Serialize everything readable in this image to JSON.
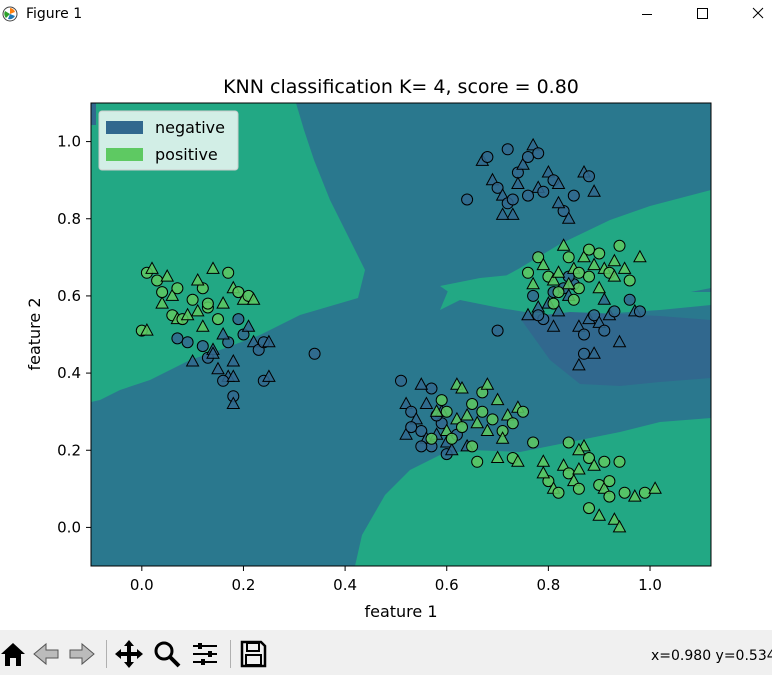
{
  "window": {
    "title": "Figure 1",
    "icon": "matplotlib-logo-icon",
    "controls": [
      "minimize-icon",
      "maximize-icon",
      "close-icon"
    ]
  },
  "chart_data": {
    "type": "scatter",
    "title": "KNN classification K= 4, score = 0.80",
    "xlabel": "feature 1",
    "ylabel": "feature 2",
    "xlim": [
      -0.1,
      1.12
    ],
    "ylim": [
      -0.1,
      1.1
    ],
    "xticks": [
      "0.0",
      "0.2",
      "0.4",
      "0.6",
      "0.8",
      "1.0"
    ],
    "yticks": [
      "0.0",
      "0.2",
      "0.4",
      "0.6",
      "0.8",
      "1.0"
    ],
    "legend_position": "top-left",
    "legend": [
      {
        "label": "negative",
        "color": "#31688e"
      },
      {
        "label": "positive",
        "color": "#5ec962"
      }
    ],
    "background_colors": {
      "negative_region": "#2a788e",
      "positive_region": "#22a884",
      "dark_region": "#31688e"
    },
    "series": [
      {
        "name": "negative",
        "color": "#31688e",
        "points": [
          [
            0.07,
            0.49
          ],
          [
            0.1,
            0.43
          ],
          [
            0.13,
            0.44
          ],
          [
            0.15,
            0.41
          ],
          [
            0.12,
            0.47
          ],
          [
            0.14,
            0.46
          ],
          [
            0.17,
            0.48
          ],
          [
            0.18,
            0.43
          ],
          [
            0.2,
            0.5
          ],
          [
            0.21,
            0.52
          ],
          [
            0.19,
            0.54
          ],
          [
            0.22,
            0.48
          ],
          [
            0.23,
            0.46
          ],
          [
            0.17,
            0.39
          ],
          [
            0.18,
            0.34
          ],
          [
            0.18,
            0.32
          ],
          [
            0.24,
            0.48
          ],
          [
            0.25,
            0.48
          ],
          [
            0.24,
            0.38
          ],
          [
            0.25,
            0.39
          ],
          [
            0.16,
            0.38
          ],
          [
            0.14,
            0.45
          ],
          [
            0.09,
            0.48
          ],
          [
            0.16,
            0.5
          ],
          [
            0.34,
            0.45
          ],
          [
            0.18,
            0.39
          ],
          [
            0.51,
            0.38
          ],
          [
            0.52,
            0.32
          ],
          [
            0.53,
            0.3
          ],
          [
            0.54,
            0.28
          ],
          [
            0.55,
            0.25
          ],
          [
            0.56,
            0.23
          ],
          [
            0.57,
            0.21
          ],
          [
            0.58,
            0.24
          ],
          [
            0.59,
            0.27
          ],
          [
            0.6,
            0.22
          ],
          [
            0.58,
            0.29
          ],
          [
            0.56,
            0.32
          ],
          [
            0.57,
            0.36
          ],
          [
            0.55,
            0.37
          ],
          [
            0.62,
            0.24
          ],
          [
            0.64,
            0.21
          ],
          [
            0.6,
            0.19
          ],
          [
            0.52,
            0.24
          ],
          [
            0.53,
            0.26
          ],
          [
            0.59,
            0.3
          ],
          [
            0.55,
            0.21
          ],
          [
            0.61,
            0.2
          ],
          [
            0.64,
            0.85
          ],
          [
            0.67,
            0.95
          ],
          [
            0.68,
            0.96
          ],
          [
            0.69,
            0.9
          ],
          [
            0.7,
            0.88
          ],
          [
            0.71,
            0.86
          ],
          [
            0.72,
            0.84
          ],
          [
            0.73,
            0.81
          ],
          [
            0.74,
            0.92
          ],
          [
            0.75,
            0.94
          ],
          [
            0.76,
            0.96
          ],
          [
            0.77,
            0.99
          ],
          [
            0.78,
            0.97
          ],
          [
            0.78,
            0.88
          ],
          [
            0.79,
            0.87
          ],
          [
            0.8,
            0.92
          ],
          [
            0.81,
            0.9
          ],
          [
            0.82,
            0.89
          ],
          [
            0.83,
            0.82
          ],
          [
            0.84,
            0.8
          ],
          [
            0.85,
            0.86
          ],
          [
            0.87,
            0.92
          ],
          [
            0.88,
            0.91
          ],
          [
            0.89,
            0.87
          ],
          [
            0.72,
            0.98
          ],
          [
            0.74,
            0.89
          ],
          [
            0.76,
            0.86
          ],
          [
            0.71,
            0.81
          ],
          [
            0.73,
            0.85
          ],
          [
            0.82,
            0.84
          ],
          [
            0.7,
            0.51
          ],
          [
            0.76,
            0.55
          ],
          [
            0.77,
            0.6
          ],
          [
            0.78,
            0.57
          ],
          [
            0.79,
            0.54
          ],
          [
            0.8,
            0.58
          ],
          [
            0.81,
            0.61
          ],
          [
            0.82,
            0.56
          ],
          [
            0.83,
            0.62
          ],
          [
            0.84,
            0.6
          ],
          [
            0.85,
            0.63
          ],
          [
            0.86,
            0.52
          ],
          [
            0.87,
            0.5
          ],
          [
            0.88,
            0.54
          ],
          [
            0.89,
            0.55
          ],
          [
            0.9,
            0.53
          ],
          [
            0.91,
            0.51
          ],
          [
            0.92,
            0.55
          ],
          [
            0.93,
            0.56
          ],
          [
            0.94,
            0.48
          ],
          [
            0.96,
            0.59
          ],
          [
            0.97,
            0.56
          ],
          [
            0.98,
            0.56
          ],
          [
            0.89,
            0.45
          ],
          [
            0.87,
            0.45
          ],
          [
            0.86,
            0.42
          ],
          [
            0.78,
            0.55
          ],
          [
            0.81,
            0.52
          ],
          [
            0.84,
            0.65
          ],
          [
            0.91,
            0.59
          ]
        ]
      },
      {
        "name": "positive",
        "color": "#5ec962",
        "points": [
          [
            0.0,
            0.51
          ],
          [
            0.01,
            0.51
          ],
          [
            0.01,
            0.66
          ],
          [
            0.02,
            0.67
          ],
          [
            0.03,
            0.64
          ],
          [
            0.04,
            0.58
          ],
          [
            0.04,
            0.61
          ],
          [
            0.05,
            0.65
          ],
          [
            0.06,
            0.55
          ],
          [
            0.06,
            0.6
          ],
          [
            0.07,
            0.62
          ],
          [
            0.07,
            0.54
          ],
          [
            0.08,
            0.54
          ],
          [
            0.09,
            0.55
          ],
          [
            0.1,
            0.59
          ],
          [
            0.11,
            0.56
          ],
          [
            0.12,
            0.62
          ],
          [
            0.12,
            0.52
          ],
          [
            0.13,
            0.57
          ],
          [
            0.14,
            0.67
          ],
          [
            0.15,
            0.54
          ],
          [
            0.16,
            0.58
          ],
          [
            0.17,
            0.66
          ],
          [
            0.18,
            0.62
          ],
          [
            0.19,
            0.61
          ],
          [
            0.2,
            0.59
          ],
          [
            0.21,
            0.6
          ],
          [
            0.22,
            0.59
          ],
          [
            0.13,
            0.58
          ],
          [
            0.11,
            0.64
          ],
          [
            0.57,
            0.23
          ],
          [
            0.58,
            0.3
          ],
          [
            0.59,
            0.33
          ],
          [
            0.6,
            0.25
          ],
          [
            0.61,
            0.23
          ],
          [
            0.62,
            0.28
          ],
          [
            0.63,
            0.26
          ],
          [
            0.64,
            0.29
          ],
          [
            0.65,
            0.32
          ],
          [
            0.66,
            0.27
          ],
          [
            0.67,
            0.3
          ],
          [
            0.68,
            0.25
          ],
          [
            0.69,
            0.28
          ],
          [
            0.7,
            0.33
          ],
          [
            0.71,
            0.25
          ],
          [
            0.72,
            0.29
          ],
          [
            0.73,
            0.27
          ],
          [
            0.74,
            0.31
          ],
          [
            0.75,
            0.3
          ],
          [
            0.62,
            0.37
          ],
          [
            0.67,
            0.35
          ],
          [
            0.68,
            0.37
          ],
          [
            0.66,
            0.17
          ],
          [
            0.7,
            0.18
          ],
          [
            0.73,
            0.18
          ],
          [
            0.74,
            0.17
          ],
          [
            0.65,
            0.21
          ],
          [
            0.71,
            0.23
          ],
          [
            0.6,
            0.3
          ],
          [
            0.63,
            0.36
          ],
          [
            0.77,
            0.22
          ],
          [
            0.79,
            0.17
          ],
          [
            0.8,
            0.12
          ],
          [
            0.81,
            0.1
          ],
          [
            0.82,
            0.09
          ],
          [
            0.83,
            0.16
          ],
          [
            0.84,
            0.14
          ],
          [
            0.85,
            0.12
          ],
          [
            0.86,
            0.1
          ],
          [
            0.87,
            0.21
          ],
          [
            0.88,
            0.18
          ],
          [
            0.89,
            0.16
          ],
          [
            0.9,
            0.11
          ],
          [
            0.91,
            0.1
          ],
          [
            0.92,
            0.08
          ],
          [
            0.93,
            0.02
          ],
          [
            0.94,
            0.17
          ],
          [
            0.94,
            0.0
          ],
          [
            0.95,
            0.09
          ],
          [
            0.97,
            0.08
          ],
          [
            0.99,
            0.09
          ],
          [
            1.01,
            0.1
          ],
          [
            0.91,
            0.17
          ],
          [
            0.86,
            0.2
          ],
          [
            0.84,
            0.22
          ],
          [
            0.79,
            0.14
          ],
          [
            0.88,
            0.05
          ],
          [
            0.9,
            0.03
          ],
          [
            0.92,
            0.12
          ],
          [
            0.86,
            0.15
          ],
          [
            0.76,
            0.66
          ],
          [
            0.77,
            0.63
          ],
          [
            0.78,
            0.7
          ],
          [
            0.79,
            0.68
          ],
          [
            0.8,
            0.65
          ],
          [
            0.81,
            0.64
          ],
          [
            0.82,
            0.61
          ],
          [
            0.83,
            0.73
          ],
          [
            0.84,
            0.7
          ],
          [
            0.85,
            0.67
          ],
          [
            0.86,
            0.66
          ],
          [
            0.87,
            0.7
          ],
          [
            0.88,
            0.65
          ],
          [
            0.89,
            0.68
          ],
          [
            0.9,
            0.71
          ],
          [
            0.91,
            0.67
          ],
          [
            0.92,
            0.66
          ],
          [
            0.93,
            0.65
          ],
          [
            0.94,
            0.73
          ],
          [
            0.95,
            0.67
          ],
          [
            0.96,
            0.64
          ],
          [
            0.98,
            0.7
          ],
          [
            0.86,
            0.62
          ],
          [
            0.84,
            0.63
          ],
          [
            0.88,
            0.72
          ],
          [
            0.82,
            0.66
          ],
          [
            0.81,
            0.58
          ],
          [
            0.9,
            0.62
          ],
          [
            0.85,
            0.59
          ],
          [
            0.93,
            0.69
          ]
        ]
      }
    ]
  },
  "toolbar": {
    "buttons": [
      "home-icon",
      "back-icon",
      "forward-icon",
      "pan-icon",
      "zoom-icon",
      "configure-subplots-icon",
      "save-icon"
    ],
    "coords_text": "x=0.980 y=0.534"
  }
}
